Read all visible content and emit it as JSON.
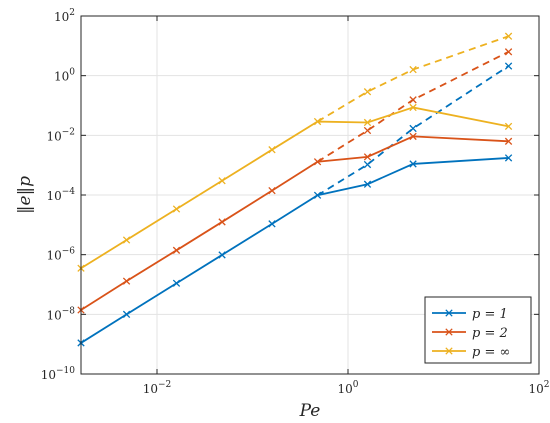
{
  "chart_data": {
    "type": "line",
    "xlabel": "Pe",
    "ylabel": "‖e‖p",
    "xscale": "log",
    "yscale": "log",
    "xlim": [
      0.0016,
      100
    ],
    "ylim": [
      1e-10,
      100
    ],
    "grid": true,
    "legend_position": "bottom-right",
    "x_ticks": [
      {
        "value": 0.01,
        "base": "10",
        "exp": "−2"
      },
      {
        "value": 1,
        "base": "10",
        "exp": "0"
      },
      {
        "value": 100,
        "base": "10",
        "exp": "2"
      }
    ],
    "y_ticks": [
      {
        "value": 1e-10,
        "base": "10",
        "exp": "−10"
      },
      {
        "value": 1e-08,
        "base": "10",
        "exp": "−8"
      },
      {
        "value": 1e-06,
        "base": "10",
        "exp": "−6"
      },
      {
        "value": 0.0001,
        "base": "10",
        "exp": "−4"
      },
      {
        "value": 0.01,
        "base": "10",
        "exp": "−2"
      },
      {
        "value": 1,
        "base": "10",
        "exp": "0"
      },
      {
        "value": 100,
        "base": "10",
        "exp": "2"
      }
    ],
    "series": [
      {
        "name": "p = 1",
        "legend_base": "p = ",
        "legend_suffix": "1",
        "color": "#0072bd",
        "x": [
          0.0016,
          0.0048,
          0.016,
          0.048,
          0.16,
          0.48,
          1.6,
          4.8,
          48
        ],
        "solid": [
          1.1e-09,
          1e-08,
          1.1e-07,
          9.8e-07,
          1.08e-05,
          9.8e-05,
          0.00023,
          0.0011,
          0.00175
        ],
        "dashed_x": [
          0.48,
          1.6,
          4.8,
          48
        ],
        "dashed": [
          9.8e-05,
          0.00105,
          0.017,
          2.1
        ]
      },
      {
        "name": "p = 2",
        "legend_base": "p = ",
        "legend_suffix": "2",
        "color": "#d95319",
        "x": [
          0.0016,
          0.0048,
          0.016,
          0.048,
          0.16,
          0.48,
          1.6,
          4.8,
          48
        ],
        "solid": [
          1.4e-08,
          1.3e-07,
          1.4e-06,
          1.25e-05,
          0.00014,
          0.0013,
          0.0019,
          0.0092,
          0.0063
        ],
        "dashed_x": [
          0.48,
          1.6,
          4.8,
          48
        ],
        "dashed": [
          0.0013,
          0.0145,
          0.155,
          6.3
        ]
      },
      {
        "name": "p = ∞",
        "legend_base": "p = ",
        "legend_suffix": "∞",
        "color": "#edb120",
        "x": [
          0.0016,
          0.0048,
          0.016,
          0.048,
          0.16,
          0.48,
          1.6,
          4.8,
          48
        ],
        "solid": [
          3.5e-07,
          3.1e-06,
          3.4e-05,
          0.0003,
          0.0033,
          0.029,
          0.027,
          0.086,
          0.02
        ],
        "dashed_x": [
          0.48,
          1.6,
          4.8,
          48
        ],
        "dashed": [
          0.029,
          0.29,
          1.6,
          21
        ]
      }
    ]
  }
}
